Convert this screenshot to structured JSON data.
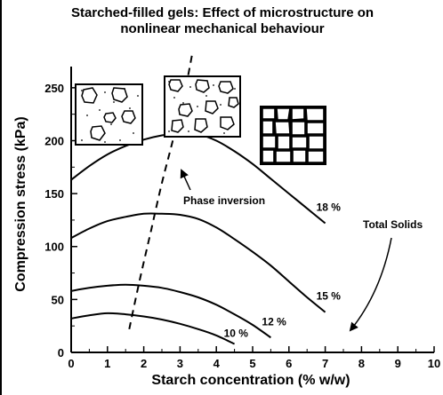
{
  "chart_data": {
    "type": "line",
    "title": "Starched-filled gels: Effect of microstructure on",
    "subtitle": "nonlinear mechanical behaviour",
    "xlabel": "Starch concentration (% w/w)",
    "ylabel": "Compression stress (kPa)",
    "xlim": [
      0,
      10
    ],
    "ylim": [
      0,
      270
    ],
    "x_ticks": [
      "0",
      "1",
      "2",
      "3",
      "4",
      "5",
      "6",
      "7",
      "8",
      "9",
      "10"
    ],
    "y_ticks": [
      "0",
      "50",
      "100",
      "150",
      "200",
      "250"
    ],
    "grid": false,
    "series": [
      {
        "name": "18 %",
        "x": [
          0,
          0.5,
          1,
          1.5,
          2,
          2.5,
          3,
          3.5,
          4,
          4.5,
          5,
          5.5,
          6,
          6.5,
          7
        ],
        "values": [
          163,
          176,
          187,
          195,
          201,
          205,
          207,
          206,
          200,
          190,
          178,
          164,
          150,
          136,
          122
        ]
      },
      {
        "name": "15 %",
        "x": [
          0,
          0.5,
          1,
          1.5,
          2,
          2.5,
          3,
          3.5,
          4,
          4.5,
          5,
          5.5,
          6,
          6.5,
          7
        ],
        "values": [
          108,
          117,
          124,
          128,
          131,
          131,
          130,
          126,
          118,
          107,
          95,
          82,
          67,
          52,
          38
        ]
      },
      {
        "name": "12 %",
        "x": [
          0,
          0.5,
          1,
          1.5,
          2,
          2.5,
          3,
          3.5,
          4,
          4.5,
          5,
          5.5
        ],
        "values": [
          58,
          61,
          63,
          64,
          63,
          61,
          57,
          52,
          45,
          36,
          26,
          14
        ]
      },
      {
        "name": "10 %",
        "x": [
          0,
          0.5,
          1,
          1.5,
          2,
          2.5,
          3,
          3.5,
          4,
          4.5
        ],
        "values": [
          32,
          35,
          37,
          36,
          34,
          31,
          27,
          22,
          16,
          8
        ]
      }
    ],
    "phase_boundary": {
      "label": "Phase inversion",
      "x": [
        1.6,
        1.9,
        2.2,
        2.5,
        2.8,
        3.0,
        3.2,
        3.35
      ],
      "values": [
        22,
        70,
        115,
        160,
        200,
        230,
        258,
        285
      ]
    },
    "annotations": {
      "total_solids": "Total Solids"
    }
  }
}
